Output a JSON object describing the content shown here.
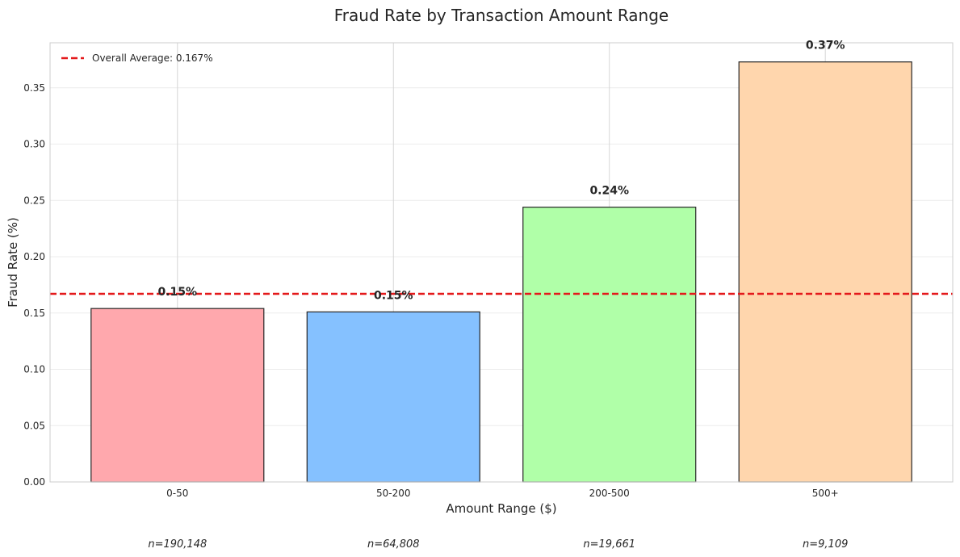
{
  "chart_data": {
    "type": "bar",
    "title": "Fraud Rate by Transaction Amount Range",
    "xlabel": "Amount Range ($)",
    "ylabel": "Fraud Rate (%)",
    "categories": [
      "0-50",
      "50-200",
      "200-500",
      "500+"
    ],
    "values": [
      0.154,
      0.151,
      0.244,
      0.373
    ],
    "value_labels": [
      "0.15%",
      "0.15%",
      "0.24%",
      "0.37%"
    ],
    "counts": [
      "n=190,148",
      "n=64,808",
      "n=19,661",
      "n=9,109"
    ],
    "colors": [
      "#ffa8ad",
      "#85c1ff",
      "#b0ffa8",
      "#ffd6ad"
    ],
    "ylim": [
      0,
      0.39
    ],
    "yticks": [
      0.0,
      0.05,
      0.1,
      0.15,
      0.2,
      0.25,
      0.3,
      0.35
    ],
    "ytick_labels": [
      "0.00",
      "0.05",
      "0.10",
      "0.15",
      "0.20",
      "0.25",
      "0.30",
      "0.35"
    ],
    "reference_line": {
      "value": 0.167,
      "label": "Overall Average: 0.167%",
      "color": "#e41a1c",
      "style": "dashed"
    },
    "legend": {
      "placement": "top-left"
    },
    "grid": true
  }
}
